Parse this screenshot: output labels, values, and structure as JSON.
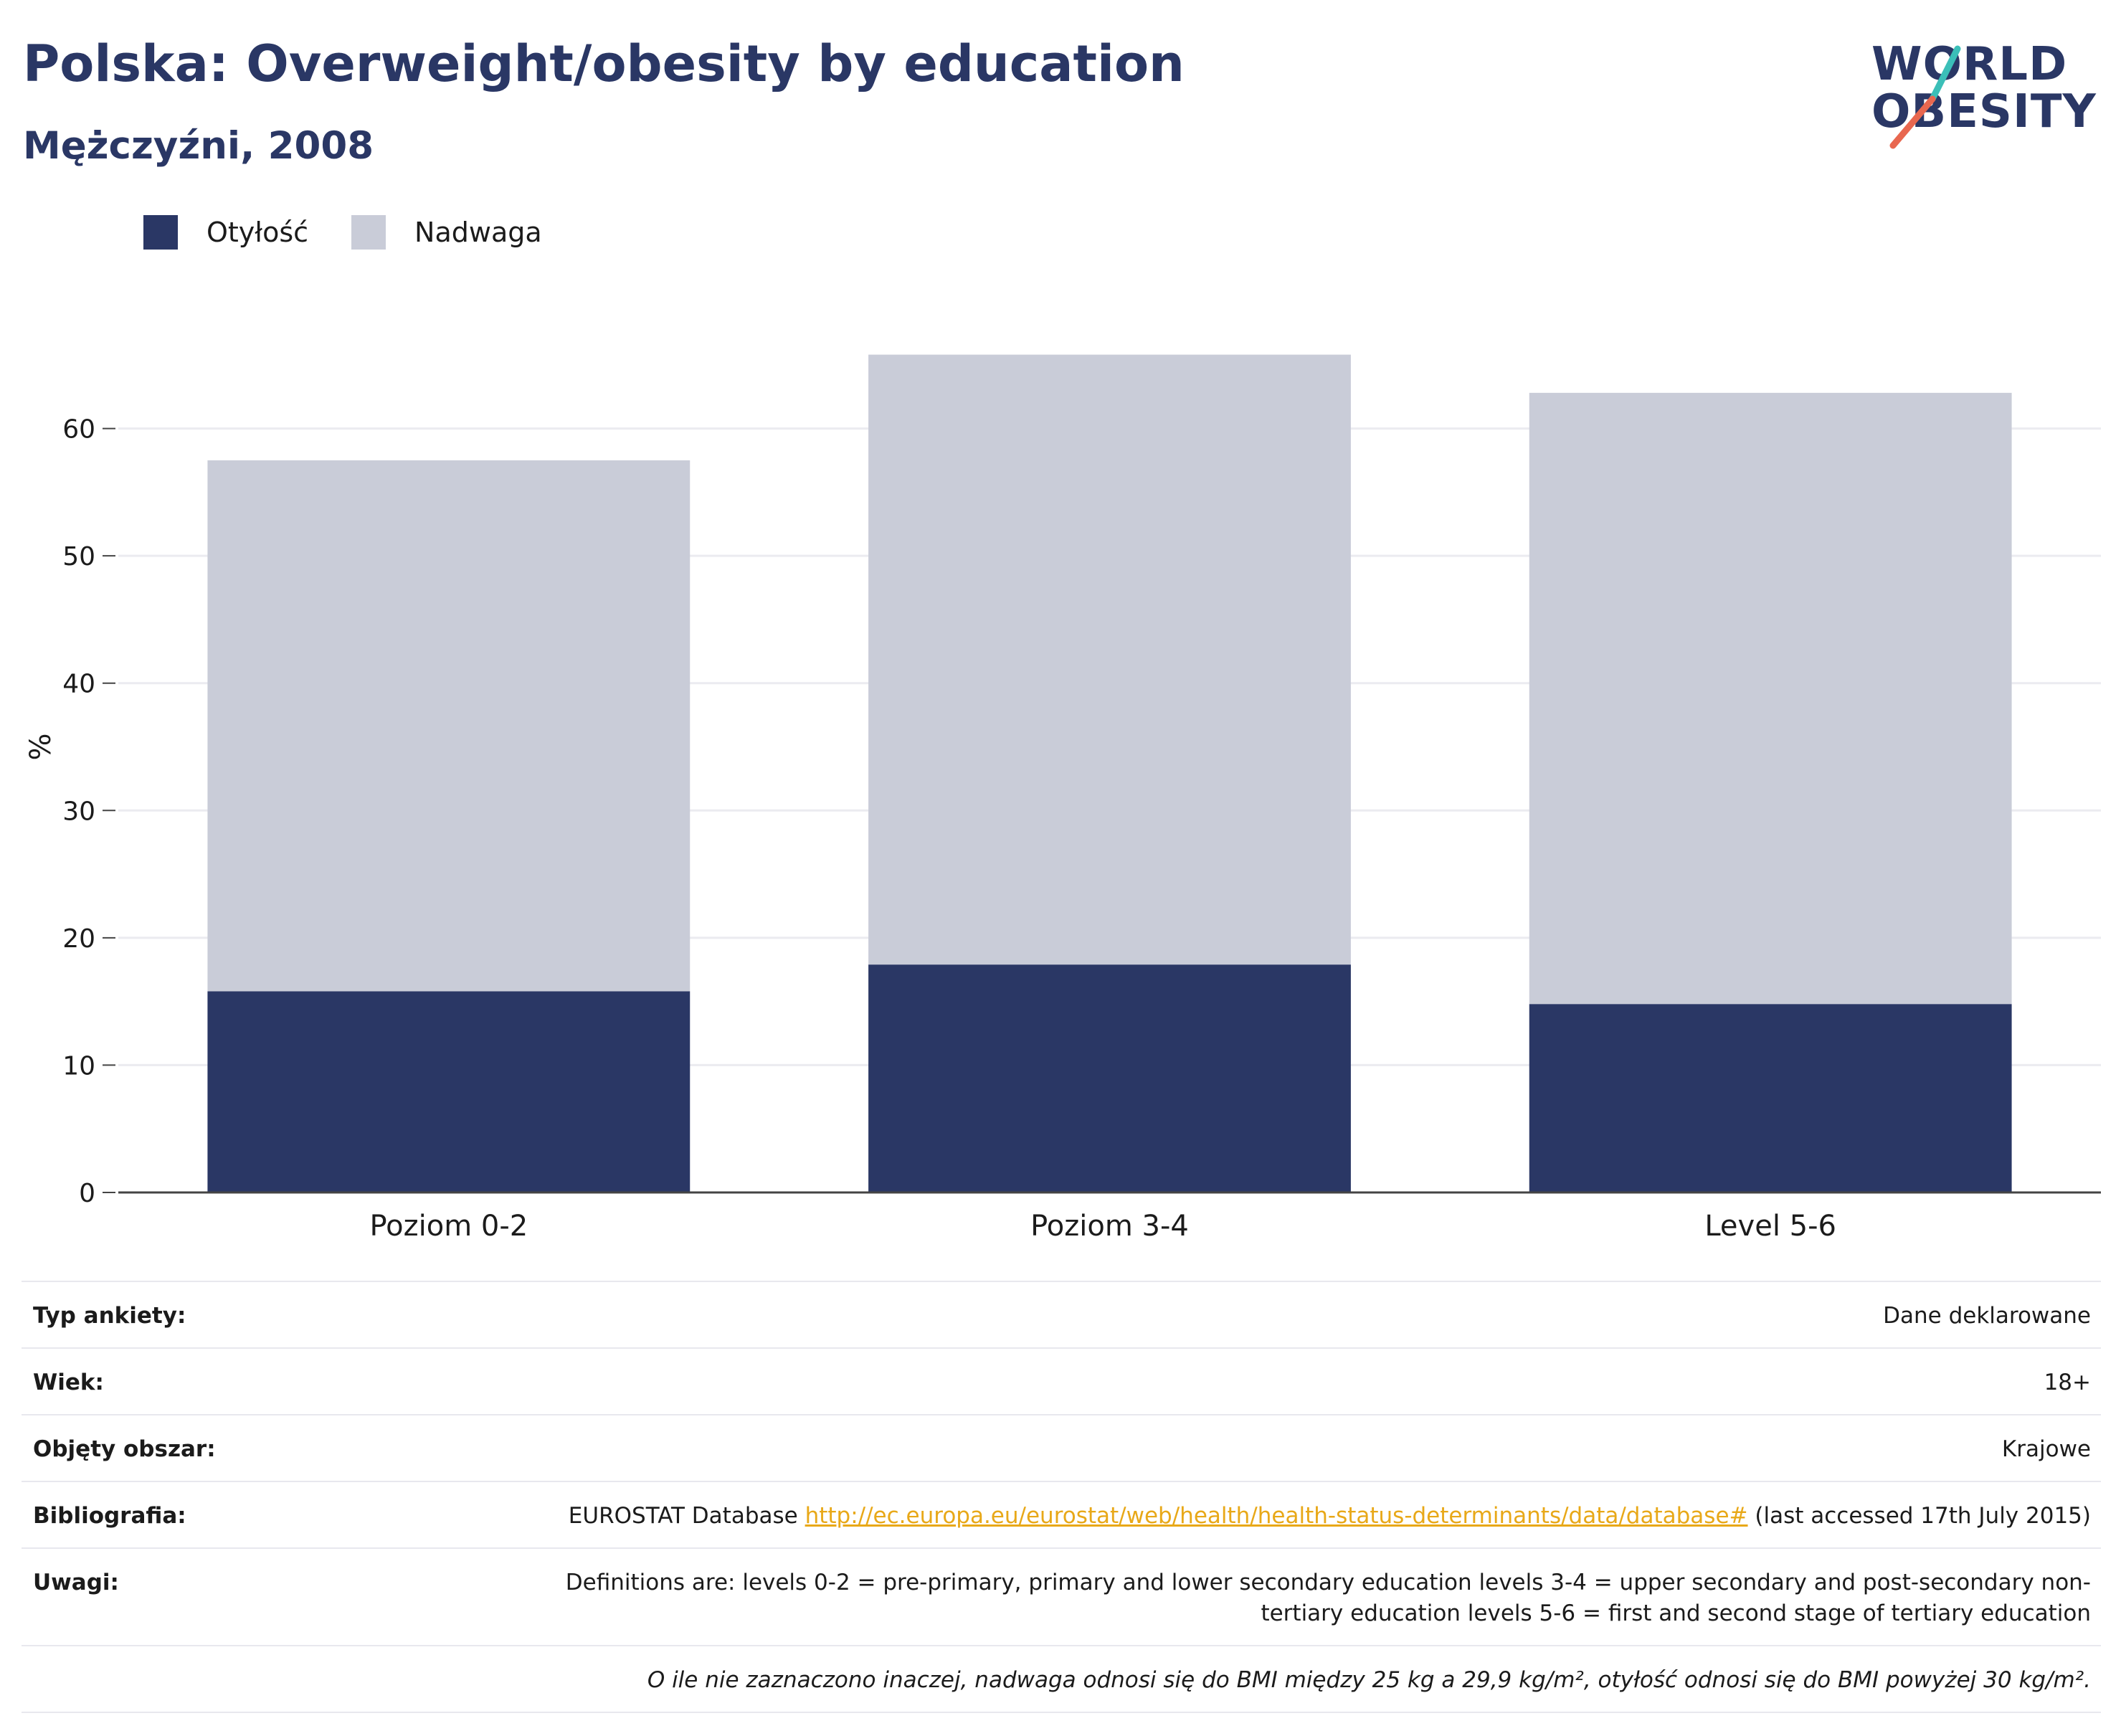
{
  "header": {
    "title": "Polska: Overweight/obesity by education",
    "subtitle": "Mężczyźni, 2008"
  },
  "logo": {
    "line1": "WORLD",
    "line2": "OBESITY",
    "slash_colors": [
      "#3bbfb8",
      "#e8674f"
    ]
  },
  "legend": {
    "items": [
      {
        "label": "Otyłość",
        "color": "#2a3765"
      },
      {
        "label": "Nadwaga",
        "color": "#c9ccd8"
      }
    ]
  },
  "chart_data": {
    "type": "bar",
    "stacked": true,
    "categories": [
      "Poziom 0-2",
      "Poziom 3-4",
      "Level 5-6"
    ],
    "series": [
      {
        "name": "Otyłość",
        "color": "#2a3765",
        "values": [
          15.8,
          17.9,
          14.8
        ]
      },
      {
        "name": "Nadwaga",
        "color": "#c9ccd8",
        "values": [
          41.7,
          47.9,
          48.0
        ]
      }
    ],
    "ylabel": "%",
    "xlabel": "",
    "ylim": [
      0,
      70
    ],
    "yticks": [
      0,
      10,
      20,
      30,
      40,
      50,
      60
    ],
    "grid": true,
    "legend_position": "top-left"
  },
  "info": {
    "rows": [
      {
        "key": "Typ ankiety:",
        "value": "Dane deklarowane"
      },
      {
        "key": "Wiek:",
        "value": "18+"
      },
      {
        "key": "Objęty obszar:",
        "value": "Krajowe"
      }
    ],
    "bibliography": {
      "key": "Bibliografia:",
      "prefix": "EUROSTAT Database ",
      "link": "http://ec.europa.eu/eurostat/web/health/health-status-determinants/data/database#",
      "suffix": " (last accessed 17th July 2015)"
    },
    "notes": {
      "key": "Uwagi:",
      "value": "Definitions are: levels 0-2 = pre-primary, primary and lower secondary education levels 3-4 = upper secondary and post-secondary non-tertiary education levels 5-6 = first and second stage of tertiary education"
    },
    "footnote": "O ile nie zaznaczono inaczej, nadwaga odnosi się do BMI między 25 kg a 29,9 kg/m², otyłość odnosi się do BMI powyżej 30 kg/m²."
  }
}
